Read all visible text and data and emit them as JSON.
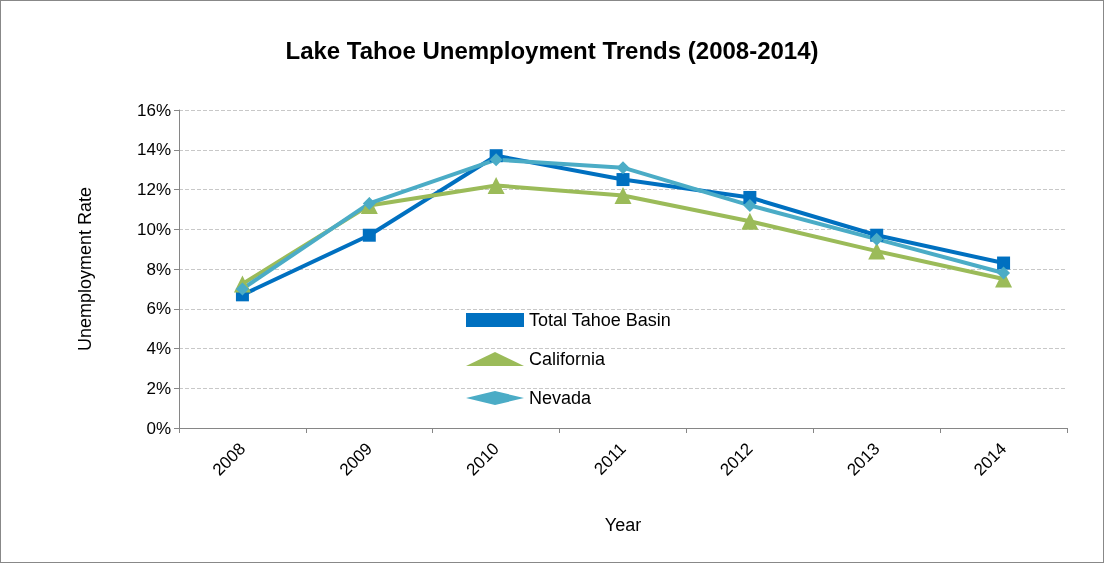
{
  "chart_data": {
    "type": "line",
    "title": "Lake Tahoe Unemployment Trends (2008-2014)",
    "xlabel": "Year",
    "ylabel": "Unemployment Rate",
    "categories": [
      "2008",
      "2009",
      "2010",
      "2011",
      "2012",
      "2013",
      "2014"
    ],
    "series": [
      {
        "name": "Total Tahoe Basin",
        "color": "#0070c0",
        "marker": "square",
        "values": [
          6.7,
          9.7,
          13.7,
          12.5,
          11.6,
          9.7,
          8.3
        ]
      },
      {
        "name": "California",
        "color": "#9bbb59",
        "marker": "triangle",
        "values": [
          7.25,
          11.2,
          12.2,
          11.7,
          10.4,
          8.9,
          7.5
        ]
      },
      {
        "name": "Nevada",
        "color": "#4bacc6",
        "marker": "diamond",
        "values": [
          7.0,
          11.3,
          13.5,
          13.1,
          11.2,
          9.5,
          7.8
        ]
      }
    ],
    "ylim": [
      0,
      16
    ],
    "yticks": [
      {
        "value": 0,
        "label": "0%"
      },
      {
        "value": 2,
        "label": "2%"
      },
      {
        "value": 4,
        "label": "4%"
      },
      {
        "value": 6,
        "label": "6%"
      },
      {
        "value": 8,
        "label": "8%"
      },
      {
        "value": 10,
        "label": "10%"
      },
      {
        "value": 12,
        "label": "12%"
      },
      {
        "value": 14,
        "label": "14%"
      },
      {
        "value": 16,
        "label": "16%"
      }
    ],
    "grid": "y",
    "legend": "bottom"
  }
}
